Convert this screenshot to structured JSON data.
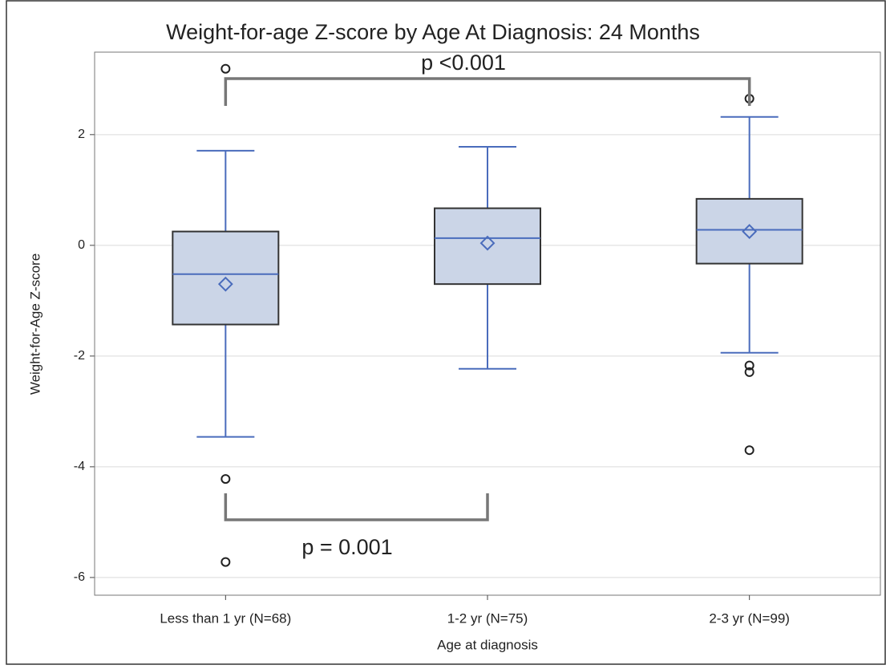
{
  "chart_data": {
    "type": "box",
    "title": "Weight-for-age Z-score by Age At Diagnosis: 24 Months",
    "x_label": "Age at diagnosis",
    "y_label": "Weight-for-Age Z-score",
    "categories": [
      "Less than 1 yr (N=68)",
      "1-2 yr (N=75)",
      "2-3 yr (N=99)"
    ],
    "boxes": [
      {
        "whisker_high": 1.71,
        "q3": 0.25,
        "median": -0.52,
        "q1": -1.43,
        "whisker_low": -3.46,
        "mean": -0.7,
        "outliers": [
          3.19,
          -4.22,
          -5.72
        ]
      },
      {
        "whisker_high": 1.78,
        "q3": 0.67,
        "median": 0.13,
        "q1": -0.7,
        "whisker_low": -2.23,
        "mean": 0.04,
        "outliers": []
      },
      {
        "whisker_high": 2.32,
        "q3": 0.84,
        "median": 0.28,
        "q1": -0.33,
        "whisker_low": -1.94,
        "mean": 0.25,
        "outliers": [
          2.65,
          -2.17,
          -2.29,
          -3.7
        ]
      }
    ],
    "box_color": "#cbd5e7",
    "whisker_color": "#4a6cbc",
    "annotations": [
      "p <0.001",
      "p = 0.001"
    ],
    "ylim": [
      -6.32,
      3.49
    ],
    "yticks": [
      -6,
      -4,
      -2,
      0,
      2
    ],
    "grid": true
  }
}
